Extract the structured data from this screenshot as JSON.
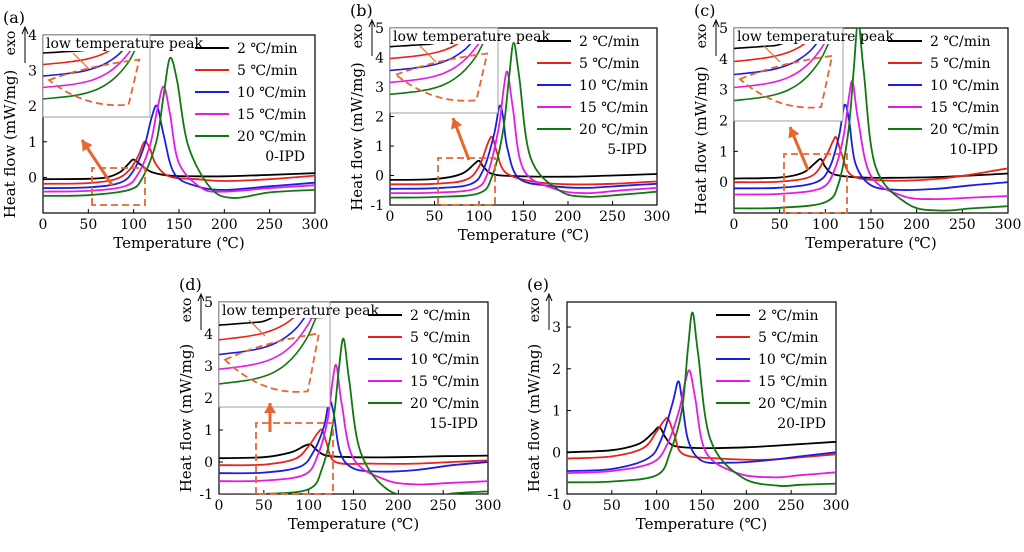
{
  "figure": {
    "tick_values_x": [
      0,
      50,
      100,
      150,
      200,
      250,
      300
    ]
  },
  "chart_data": [
    {
      "type": "line",
      "panel_label": "(a)",
      "sample": "0-IPD",
      "xlabel": "Temperature (℃)",
      "ylabel": "Heat flow (mW/mg)",
      "exo_label": "exo",
      "xlim": [
        0,
        300
      ],
      "ylim": [
        -1,
        4
      ],
      "yticks": [
        0,
        1,
        2,
        3,
        4
      ],
      "xticks": [
        0,
        50,
        100,
        150,
        200,
        250,
        300
      ],
      "inset_label": "low temperature peak",
      "legend_position": "top-right",
      "series": [
        {
          "name": "2 ℃/min",
          "color": "#000000",
          "x": [
            0,
            50,
            70,
            85,
            95,
            100,
            108,
            120,
            140,
            170,
            200,
            250,
            300
          ],
          "y": [
            -0.05,
            -0.04,
            0.0,
            0.15,
            0.4,
            0.5,
            0.35,
            0.15,
            0.05,
            0.03,
            0.03,
            0.07,
            0.12
          ]
        },
        {
          "name": "5 ℃/min",
          "color": "#e8231b",
          "x": [
            0,
            50,
            80,
            95,
            105,
            112,
            118,
            125,
            140,
            170,
            200,
            250,
            300
          ],
          "y": [
            -0.18,
            -0.16,
            -0.05,
            0.2,
            0.6,
            1.0,
            0.8,
            0.35,
            0.02,
            -0.05,
            -0.1,
            -0.05,
            0.05
          ]
        },
        {
          "name": "10 ℃/min",
          "color": "#1d1de0",
          "x": [
            0,
            50,
            85,
            100,
            112,
            120,
            126,
            133,
            145,
            170,
            200,
            250,
            300
          ],
          "y": [
            -0.3,
            -0.28,
            -0.15,
            0.2,
            0.9,
            1.7,
            2.0,
            1.2,
            0.1,
            -0.25,
            -0.35,
            -0.25,
            -0.15
          ]
        },
        {
          "name": "15 ℃/min",
          "color": "#e61ae6",
          "x": [
            0,
            50,
            90,
            105,
            118,
            126,
            133,
            140,
            150,
            175,
            200,
            250,
            300
          ],
          "y": [
            -0.4,
            -0.38,
            -0.25,
            0.1,
            0.9,
            1.9,
            2.55,
            1.8,
            0.4,
            -0.3,
            -0.4,
            -0.3,
            -0.22
          ]
        },
        {
          "name": "20 ℃/min",
          "color": "#117711",
          "x": [
            0,
            50,
            95,
            110,
            125,
            133,
            140,
            148,
            160,
            185,
            210,
            250,
            300
          ],
          "y": [
            -0.52,
            -0.5,
            -0.35,
            0.0,
            1.0,
            2.3,
            3.35,
            2.7,
            0.9,
            -0.3,
            -0.58,
            -0.42,
            -0.35
          ]
        }
      ]
    },
    {
      "type": "line",
      "panel_label": "(b)",
      "sample": "5-IPD",
      "xlabel": "Temperature (℃)",
      "ylabel": "Heat flow (mW/mg)",
      "exo_label": "exo",
      "xlim": [
        0,
        300
      ],
      "ylim": [
        -1,
        5
      ],
      "yticks": [
        -1,
        0,
        1,
        2,
        3,
        4,
        5
      ],
      "xticks": [
        0,
        50,
        100,
        150,
        200,
        250,
        300
      ],
      "inset_label": "low temperature peak",
      "legend_position": "top-right",
      "series": [
        {
          "name": "2 ℃/min",
          "color": "#000000",
          "x": [
            0,
            50,
            80,
            95,
            100,
            105,
            115,
            140,
            200,
            250,
            300
          ],
          "y": [
            -0.15,
            -0.12,
            0.05,
            0.4,
            0.5,
            0.3,
            0.05,
            -0.02,
            -0.04,
            0.0,
            0.05
          ]
        },
        {
          "name": "5 ℃/min",
          "color": "#e8231b",
          "x": [
            0,
            50,
            85,
            100,
            110,
            115,
            120,
            130,
            160,
            200,
            250,
            300
          ],
          "y": [
            -0.3,
            -0.28,
            -0.15,
            0.3,
            1.1,
            1.3,
            0.8,
            0.1,
            -0.2,
            -0.3,
            -0.28,
            -0.2
          ]
        },
        {
          "name": "10 ℃/min",
          "color": "#1d1de0",
          "x": [
            0,
            50,
            90,
            105,
            117,
            123,
            127,
            132,
            145,
            180,
            220,
            260,
            300
          ],
          "y": [
            -0.45,
            -0.43,
            -0.3,
            0.2,
            1.4,
            2.35,
            2.0,
            0.9,
            -0.1,
            -0.35,
            -0.42,
            -0.35,
            -0.28
          ]
        },
        {
          "name": "15 ℃/min",
          "color": "#e61ae6",
          "x": [
            0,
            50,
            95,
            110,
            122,
            128,
            132,
            138,
            150,
            185,
            220,
            260,
            300
          ],
          "y": [
            -0.6,
            -0.58,
            -0.45,
            0.1,
            1.6,
            3.0,
            3.5,
            2.3,
            0.2,
            -0.45,
            -0.6,
            -0.5,
            -0.42
          ]
        },
        {
          "name": "20 ℃/min",
          "color": "#117711",
          "x": [
            0,
            50,
            100,
            115,
            127,
            134,
            139,
            145,
            158,
            190,
            220,
            260,
            300
          ],
          "y": [
            -0.75,
            -0.73,
            -0.6,
            0.0,
            1.5,
            3.4,
            4.5,
            3.4,
            0.6,
            -0.5,
            -0.72,
            -0.65,
            -0.55
          ]
        }
      ]
    },
    {
      "type": "line",
      "panel_label": "(c)",
      "sample": "10-IPD",
      "xlabel": "Temperature (℃)",
      "ylabel": "Heat flow (mW/mg)",
      "exo_label": "exo",
      "xlim": [
        0,
        300
      ],
      "ylim": [
        -1,
        5
      ],
      "yticks": [
        0,
        1,
        2,
        3,
        4,
        5
      ],
      "xticks": [
        0,
        50,
        100,
        150,
        200,
        250,
        300
      ],
      "inset_label": "low temperature peak",
      "legend_position": "top-right",
      "series": [
        {
          "name": "2 ℃/min",
          "color": "#000000",
          "x": [
            0,
            50,
            75,
            88,
            95,
            100,
            110,
            140,
            200,
            250,
            300
          ],
          "y": [
            0.12,
            0.15,
            0.3,
            0.6,
            0.75,
            0.5,
            0.25,
            0.15,
            0.15,
            0.2,
            0.28
          ]
        },
        {
          "name": "5 ℃/min",
          "color": "#e8231b",
          "x": [
            0,
            50,
            85,
            100,
            108,
            112,
            118,
            130,
            170,
            220,
            260,
            300
          ],
          "y": [
            0.0,
            0.02,
            0.2,
            0.8,
            1.3,
            1.45,
            0.9,
            0.2,
            0.05,
            0.1,
            0.25,
            0.45
          ]
        },
        {
          "name": "10 ℃/min",
          "color": "#1d1de0",
          "x": [
            0,
            50,
            90,
            105,
            115,
            121,
            126,
            133,
            150,
            180,
            220,
            260,
            300
          ],
          "y": [
            -0.2,
            -0.18,
            0.0,
            0.5,
            1.5,
            2.5,
            2.0,
            0.6,
            -0.1,
            -0.25,
            -0.22,
            -0.1,
            0.0
          ]
        },
        {
          "name": "15 ℃/min",
          "color": "#e61ae6",
          "x": [
            0,
            50,
            95,
            110,
            120,
            126,
            130,
            136,
            150,
            185,
            220,
            260,
            300
          ],
          "y": [
            -0.4,
            -0.38,
            -0.2,
            0.4,
            1.5,
            2.8,
            3.25,
            2.0,
            0.2,
            -0.45,
            -0.55,
            -0.5,
            -0.45
          ]
        },
        {
          "name": "20 ℃/min",
          "color": "#117711",
          "x": [
            0,
            50,
            100,
            115,
            125,
            131,
            136,
            142,
            155,
            190,
            225,
            260,
            300
          ],
          "y": [
            -0.85,
            -0.83,
            -0.65,
            0.0,
            1.6,
            3.6,
            5.2,
            3.6,
            0.5,
            -0.7,
            -0.92,
            -0.85,
            -0.78
          ]
        }
      ]
    },
    {
      "type": "line",
      "panel_label": "(d)",
      "sample": "15-IPD",
      "xlabel": "Temperature (℃)",
      "ylabel": "Heat flow (mW/mg)",
      "exo_label": "exo",
      "xlim": [
        0,
        300
      ],
      "ylim": [
        -1,
        5
      ],
      "yticks": [
        -1,
        0,
        1,
        2,
        3,
        4,
        5
      ],
      "xticks": [
        0,
        50,
        100,
        150,
        200,
        250,
        300
      ],
      "inset_label": "low temperature peak",
      "legend_position": "top-right",
      "series": [
        {
          "name": "2 ℃/min",
          "color": "#000000",
          "x": [
            0,
            50,
            80,
            95,
            102,
            108,
            120,
            150,
            200,
            250,
            300
          ],
          "y": [
            0.12,
            0.15,
            0.3,
            0.5,
            0.55,
            0.4,
            0.2,
            0.15,
            0.15,
            0.18,
            0.2
          ]
        },
        {
          "name": "5 ℃/min",
          "color": "#e8231b",
          "x": [
            0,
            50,
            85,
            100,
            110,
            115,
            120,
            130,
            170,
            220,
            260,
            300
          ],
          "y": [
            -0.1,
            -0.08,
            0.1,
            0.5,
            0.9,
            1.0,
            0.6,
            0.0,
            -0.05,
            -0.05,
            0.0,
            0.05
          ]
        },
        {
          "name": "10 ℃/min",
          "color": "#1d1de0",
          "x": [
            0,
            50,
            90,
            105,
            117,
            123,
            128,
            135,
            150,
            180,
            220,
            260,
            300
          ],
          "y": [
            -0.35,
            -0.33,
            -0.15,
            0.3,
            1.1,
            1.9,
            1.5,
            0.3,
            -0.2,
            -0.3,
            -0.25,
            -0.1,
            0.0
          ]
        },
        {
          "name": "15 ℃/min",
          "color": "#e61ae6",
          "x": [
            0,
            50,
            95,
            110,
            121,
            127,
            131,
            137,
            150,
            185,
            220,
            260,
            300
          ],
          "y": [
            -0.6,
            -0.58,
            -0.4,
            0.2,
            1.3,
            2.6,
            3.0,
            1.8,
            0.1,
            -0.55,
            -0.7,
            -0.65,
            -0.6
          ]
        },
        {
          "name": "20 ℃/min",
          "color": "#117711",
          "x": [
            0,
            50,
            100,
            115,
            127,
            134,
            139,
            145,
            158,
            190,
            230,
            240,
            260,
            300
          ],
          "y": [
            -1.02,
            -1.0,
            -0.85,
            -0.2,
            1.2,
            3.0,
            3.85,
            2.6,
            0.3,
            -0.9,
            -1.05,
            -1.1,
            -0.98,
            -0.92
          ]
        }
      ]
    },
    {
      "type": "line",
      "panel_label": "(e)",
      "sample": "20-IPD",
      "xlabel": "Temperature (℃)",
      "ylabel": "Heat flow (mW/mg)",
      "exo_label": "exo",
      "xlim": [
        0,
        300
      ],
      "ylim": [
        -1,
        3.6
      ],
      "yticks": [
        -1,
        0,
        1,
        2,
        3
      ],
      "xticks": [
        0,
        50,
        100,
        150,
        200,
        250,
        300
      ],
      "legend_position": "top-right",
      "series": [
        {
          "name": "2 ℃/min",
          "color": "#000000",
          "x": [
            0,
            50,
            80,
            95,
            103,
            110,
            120,
            150,
            200,
            250,
            300
          ],
          "y": [
            0.0,
            0.05,
            0.2,
            0.45,
            0.6,
            0.35,
            0.15,
            0.1,
            0.12,
            0.18,
            0.25
          ]
        },
        {
          "name": "5 ℃/min",
          "color": "#e8231b",
          "x": [
            0,
            50,
            85,
            100,
            108,
            113,
            120,
            130,
            170,
            220,
            260,
            300
          ],
          "y": [
            -0.15,
            -0.1,
            0.1,
            0.5,
            0.75,
            0.8,
            0.4,
            -0.05,
            -0.15,
            -0.18,
            -0.12,
            -0.05
          ]
        },
        {
          "name": "10 ℃/min",
          "color": "#1d1de0",
          "x": [
            0,
            50,
            90,
            105,
            118,
            124,
            128,
            135,
            150,
            180,
            220,
            260,
            300
          ],
          "y": [
            -0.45,
            -0.4,
            -0.15,
            0.3,
            1.2,
            1.7,
            1.3,
            0.3,
            -0.2,
            -0.25,
            -0.2,
            -0.1,
            0.0
          ]
        },
        {
          "name": "15 ℃/min",
          "color": "#e61ae6",
          "x": [
            0,
            50,
            95,
            112,
            125,
            132,
            137,
            143,
            155,
            190,
            230,
            260,
            300
          ],
          "y": [
            -0.5,
            -0.45,
            -0.25,
            0.2,
            1.0,
            1.7,
            1.95,
            1.3,
            0.0,
            -0.5,
            -0.6,
            -0.55,
            -0.48
          ]
        },
        {
          "name": "20 ℃/min",
          "color": "#117711",
          "x": [
            0,
            50,
            100,
            115,
            128,
            135,
            140,
            146,
            160,
            195,
            235,
            260,
            300
          ],
          "y": [
            -0.72,
            -0.7,
            -0.55,
            0.0,
            1.0,
            2.5,
            3.35,
            2.4,
            0.3,
            -0.6,
            -0.8,
            -0.78,
            -0.75
          ]
        }
      ]
    }
  ]
}
